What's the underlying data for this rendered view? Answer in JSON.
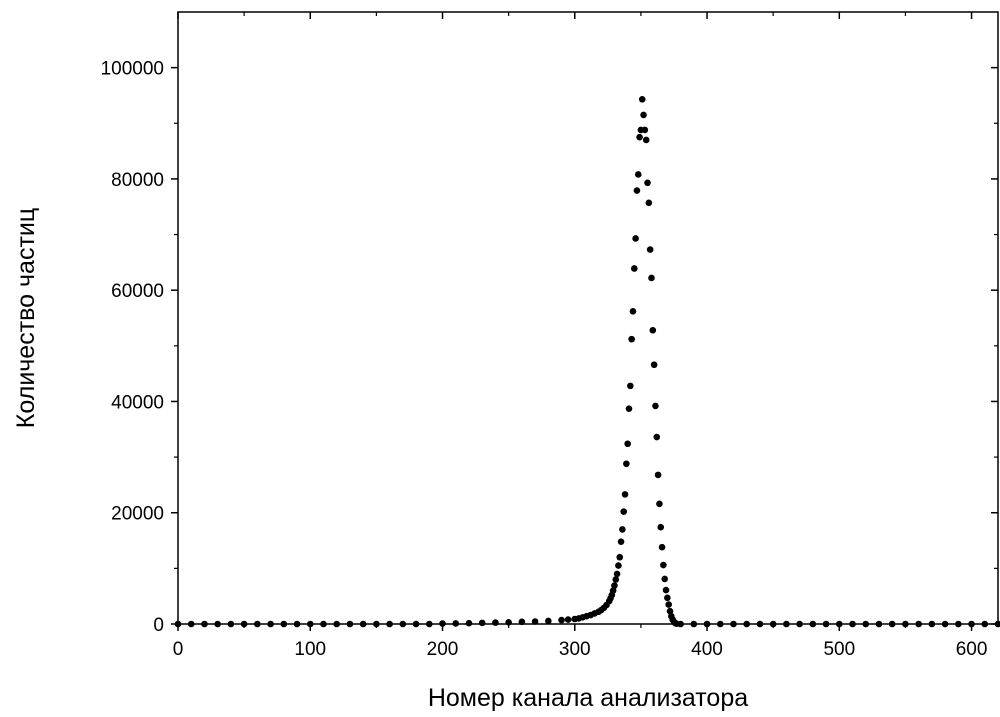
{
  "chart_data": {
    "type": "scatter",
    "title": "",
    "xlabel": "Номер канала анализатора",
    "ylabel": "Количество частиц",
    "xlim": [
      0,
      620
    ],
    "ylim": [
      0,
      110000
    ],
    "x_ticks": [
      0,
      100,
      200,
      300,
      400,
      500,
      600
    ],
    "y_ticks": [
      0,
      20000,
      40000,
      60000,
      80000,
      100000
    ],
    "x_tick_labels": [
      "0",
      "100",
      "200",
      "300",
      "400",
      "500",
      "600"
    ],
    "y_tick_labels": [
      "0",
      "20000",
      "40000",
      "60000",
      "80000",
      "100000"
    ],
    "grid": false,
    "legend": "none",
    "marker_color": "#000000",
    "series": [
      {
        "points": [
          [
            0,
            0
          ],
          [
            10,
            0
          ],
          [
            20,
            0
          ],
          [
            30,
            0
          ],
          [
            40,
            0
          ],
          [
            50,
            0
          ],
          [
            60,
            0
          ],
          [
            70,
            0
          ],
          [
            80,
            0
          ],
          [
            90,
            0
          ],
          [
            100,
            0
          ],
          [
            110,
            0
          ],
          [
            120,
            0
          ],
          [
            130,
            0
          ],
          [
            140,
            0
          ],
          [
            150,
            0
          ],
          [
            160,
            0
          ],
          [
            170,
            0
          ],
          [
            180,
            0
          ],
          [
            190,
            0
          ],
          [
            200,
            80
          ],
          [
            210,
            100
          ],
          [
            220,
            150
          ],
          [
            230,
            200
          ],
          [
            240,
            250
          ],
          [
            250,
            300
          ],
          [
            260,
            400
          ],
          [
            270,
            450
          ],
          [
            280,
            550
          ],
          [
            290,
            700
          ],
          [
            295,
            800
          ],
          [
            300,
            900
          ],
          [
            303,
            1000
          ],
          [
            306,
            1200
          ],
          [
            309,
            1400
          ],
          [
            312,
            1600
          ],
          [
            315,
            1900
          ],
          [
            318,
            2200
          ],
          [
            320,
            2500
          ],
          [
            322,
            2900
          ],
          [
            324,
            3400
          ],
          [
            326,
            4100
          ],
          [
            327,
            4600
          ],
          [
            328,
            5200
          ],
          [
            329,
            6000
          ],
          [
            330,
            6900
          ],
          [
            331,
            8000
          ],
          [
            332,
            9000
          ],
          [
            333,
            10500
          ],
          [
            334,
            12000
          ],
          [
            335,
            14800
          ],
          [
            336,
            17000
          ],
          [
            337,
            20200
          ],
          [
            338,
            23300
          ],
          [
            339,
            28800
          ],
          [
            340,
            32400
          ],
          [
            341,
            38700
          ],
          [
            342,
            42800
          ],
          [
            343,
            51200
          ],
          [
            344,
            56200
          ],
          [
            345,
            63900
          ],
          [
            346,
            69300
          ],
          [
            347,
            77900
          ],
          [
            348,
            80800
          ],
          [
            349,
            87500
          ],
          [
            350,
            88800
          ],
          [
            351,
            94300
          ],
          [
            352,
            91500
          ],
          [
            353,
            88800
          ],
          [
            354,
            87000
          ],
          [
            355,
            79300
          ],
          [
            356,
            75700
          ],
          [
            357,
            67300
          ],
          [
            358,
            62200
          ],
          [
            359,
            52800
          ],
          [
            360,
            46600
          ],
          [
            361,
            39200
          ],
          [
            362,
            33600
          ],
          [
            363,
            26800
          ],
          [
            364,
            21600
          ],
          [
            365,
            17400
          ],
          [
            366,
            13800
          ],
          [
            367,
            10600
          ],
          [
            368,
            8100
          ],
          [
            369,
            6100
          ],
          [
            370,
            4700
          ],
          [
            371,
            3500
          ],
          [
            372,
            2300
          ],
          [
            373,
            1400
          ],
          [
            374,
            800
          ],
          [
            375,
            400
          ],
          [
            376,
            150
          ],
          [
            377,
            50
          ],
          [
            380,
            0
          ],
          [
            390,
            0
          ],
          [
            400,
            0
          ],
          [
            410,
            0
          ],
          [
            420,
            0
          ],
          [
            430,
            0
          ],
          [
            440,
            0
          ],
          [
            450,
            0
          ],
          [
            460,
            0
          ],
          [
            470,
            0
          ],
          [
            480,
            0
          ],
          [
            490,
            0
          ],
          [
            500,
            0
          ],
          [
            510,
            0
          ],
          [
            520,
            0
          ],
          [
            530,
            0
          ],
          [
            540,
            0
          ],
          [
            550,
            0
          ],
          [
            560,
            0
          ],
          [
            570,
            0
          ],
          [
            580,
            0
          ],
          [
            590,
            0
          ],
          [
            600,
            0
          ],
          [
            610,
            0
          ],
          [
            620,
            0
          ]
        ]
      }
    ]
  }
}
